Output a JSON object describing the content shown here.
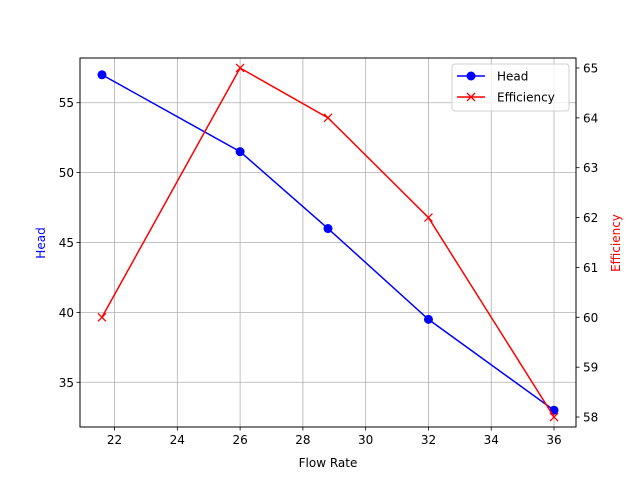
{
  "chart_data": {
    "type": "line",
    "title": "",
    "xlabel": "Flow Rate",
    "ylabel": "Head",
    "ylabel_right": "Efficiency",
    "x": [
      21.6,
      26,
      28.8,
      32,
      36
    ],
    "series": [
      {
        "name": "Head",
        "axis": "left",
        "color": "#0000ff",
        "marker": "circle",
        "values": [
          57,
          51.5,
          46,
          39.5,
          33
        ]
      },
      {
        "name": "Efficiency",
        "axis": "right",
        "color": "#ff0000",
        "marker": "x",
        "values": [
          60,
          65,
          64,
          62,
          58
        ]
      }
    ],
    "xlim": [
      20.9,
      36.7
    ],
    "ylim": [
      31.8,
      58.2
    ],
    "ylim_right": [
      57.8,
      65.2
    ],
    "xticks": [
      22,
      24,
      26,
      28,
      30,
      32,
      34,
      36
    ],
    "yticks": [
      35,
      40,
      45,
      50,
      55
    ],
    "yticks_right": [
      58,
      59,
      60,
      61,
      62,
      63,
      64,
      65
    ],
    "grid": true,
    "legend_position": "upper right"
  }
}
